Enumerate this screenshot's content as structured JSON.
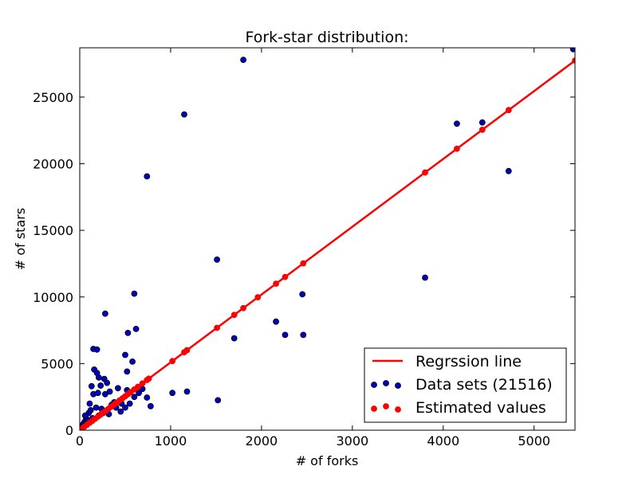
{
  "chart_data": {
    "type": "scatter",
    "title": "Fork-star distribution:",
    "xlabel": "# of forks",
    "ylabel": "# of stars",
    "xlim": [
      0,
      5450
    ],
    "ylim": [
      0,
      28700
    ],
    "xticks": [
      0,
      1000,
      2000,
      3000,
      4000,
      5000
    ],
    "yticks": [
      0,
      5000,
      10000,
      15000,
      20000,
      25000
    ],
    "grid": false,
    "legend_position": "lower-right",
    "regression": {
      "slope": 5.09,
      "intercept": 0
    },
    "series": [
      {
        "name": "Regrssion line",
        "kind": "line",
        "color": "#ff0000"
      },
      {
        "name": "Data sets (21516)",
        "kind": "scatter",
        "color": "#0000bf",
        "points": [
          [
            1800,
            27800
          ],
          [
            1150,
            23700
          ],
          [
            740,
            19050
          ],
          [
            4150,
            23000
          ],
          [
            4430,
            23100
          ],
          [
            4720,
            19450
          ],
          [
            5430,
            28600
          ],
          [
            1510,
            12800
          ],
          [
            3800,
            11450
          ],
          [
            2450,
            10200
          ],
          [
            2160,
            8150
          ],
          [
            2260,
            7150
          ],
          [
            2460,
            7150
          ],
          [
            1700,
            6900
          ],
          [
            600,
            10250
          ],
          [
            280,
            8750
          ],
          [
            620,
            7600
          ],
          [
            530,
            7300
          ],
          [
            150,
            6100
          ],
          [
            190,
            6050
          ],
          [
            500,
            5650
          ],
          [
            580,
            5150
          ],
          [
            160,
            4550
          ],
          [
            190,
            4300
          ],
          [
            210,
            3950
          ],
          [
            270,
            3850
          ],
          [
            520,
            4400
          ],
          [
            130,
            3300
          ],
          [
            230,
            3350
          ],
          [
            300,
            3550
          ],
          [
            420,
            3150
          ],
          [
            520,
            3000
          ],
          [
            690,
            3100
          ],
          [
            740,
            2450
          ],
          [
            1020,
            2800
          ],
          [
            1180,
            2900
          ],
          [
            1520,
            2250
          ],
          [
            780,
            1800
          ],
          [
            110,
            2000
          ],
          [
            150,
            2700
          ],
          [
            200,
            2800
          ],
          [
            280,
            2700
          ],
          [
            330,
            2900
          ],
          [
            380,
            2100
          ],
          [
            460,
            2000
          ],
          [
            100,
            1300
          ],
          [
            70,
            900
          ],
          [
            50,
            600
          ],
          [
            30,
            400
          ],
          [
            20,
            200
          ],
          [
            60,
            1100
          ],
          [
            120,
            1500
          ],
          [
            180,
            1700
          ],
          [
            240,
            1600
          ],
          [
            300,
            1500
          ],
          [
            350,
            1900
          ],
          [
            400,
            1700
          ],
          [
            450,
            1400
          ],
          [
            90,
            700
          ],
          [
            140,
            900
          ],
          [
            210,
            1100
          ],
          [
            260,
            1300
          ],
          [
            320,
            1200
          ],
          [
            500,
            1700
          ],
          [
            550,
            2000
          ],
          [
            600,
            2500
          ],
          [
            650,
            2800
          ],
          [
            10,
            100
          ],
          [
            40,
            300
          ],
          [
            80,
            500
          ]
        ]
      },
      {
        "name": "Estimated values",
        "kind": "scatter",
        "color": "#ff0000",
        "x": [
          20,
          50,
          80,
          110,
          140,
          170,
          200,
          230,
          260,
          290,
          320,
          350,
          380,
          410,
          440,
          470,
          500,
          530,
          560,
          600,
          640,
          690,
          740,
          760,
          1020,
          1150,
          1180,
          1510,
          1700,
          1800,
          1960,
          2160,
          2260,
          2460,
          3800,
          4150,
          4430,
          4720,
          5450
        ]
      }
    ]
  }
}
